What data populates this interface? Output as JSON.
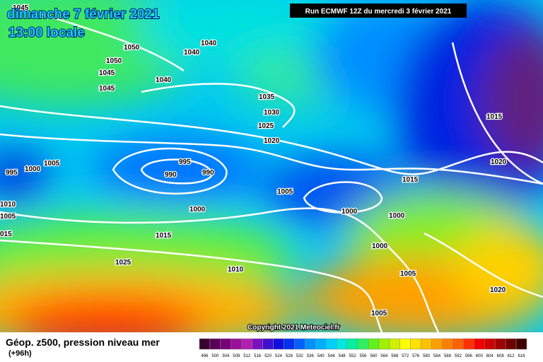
{
  "header": {
    "date": "dimanche 7 février 2021",
    "time": "13:00 locale",
    "run": "Run ECMWF 12Z du mercredi 3 février 2021"
  },
  "isobar_labels": [
    "1045",
    "1050",
    "1040",
    "1040",
    "1050",
    "1045",
    "1045",
    "1040",
    "1035",
    "1030",
    "1025",
    "1020",
    "995",
    "990",
    "990",
    "1005",
    "1000",
    "995",
    "1005",
    "1000",
    "1015",
    "1000",
    "1000",
    "1015",
    "1000",
    "1005",
    "1025",
    "1010",
    "1015",
    "1020",
    "1020",
    "1005",
    "1010",
    "1005",
    "015"
  ],
  "copyright": "Copyright 2021 Meteociel.fr",
  "legend": {
    "title": "Géop. z500, pression niveau mer",
    "subtitle": "(+96h)",
    "labels": [
      496,
      500,
      504,
      508,
      512,
      516,
      520,
      524,
      528,
      532,
      536,
      540,
      544,
      548,
      552,
      556,
      560,
      564,
      568,
      572,
      576,
      580,
      584,
      588,
      592,
      596,
      600,
      604,
      608,
      612,
      616
    ],
    "colors": [
      "#3a0030",
      "#5a005a",
      "#7a007a",
      "#9a109a",
      "#b020b0",
      "#7a10c0",
      "#4010d0",
      "#1010e0",
      "#0030f0",
      "#0060ff",
      "#0090ff",
      "#00b0ff",
      "#00d0ff",
      "#00e8e0",
      "#00f0a0",
      "#30f060",
      "#60f020",
      "#a0f000",
      "#d0f000",
      "#ffff00",
      "#ffe000",
      "#ffc000",
      "#ffa000",
      "#ff8000",
      "#ff6000",
      "#ff3000",
      "#f00000",
      "#d00000",
      "#a00000",
      "#700000",
      "#400000"
    ]
  }
}
